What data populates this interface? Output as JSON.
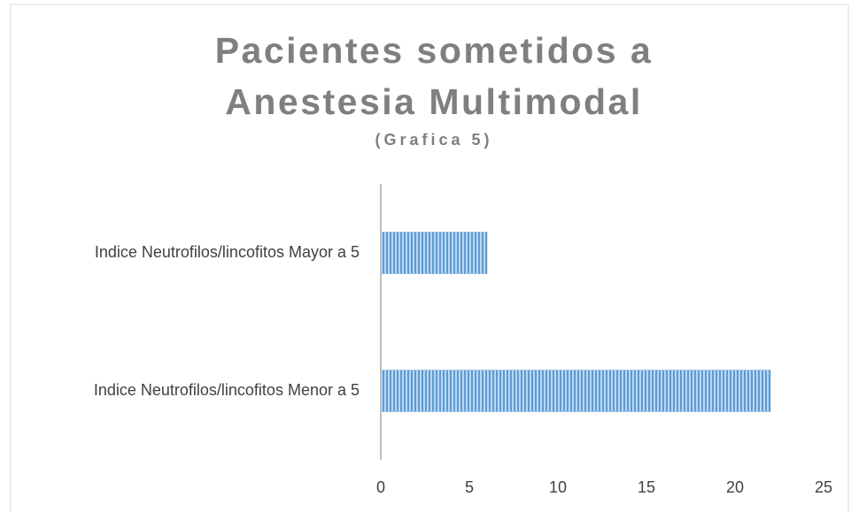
{
  "chart_data": {
    "type": "bar",
    "orientation": "horizontal",
    "title": "Pacientes sometidos a Anestesia Multimodal",
    "subtitle": "(Grafica 5)",
    "categories": [
      "Indice Neutrofilos/lincofitos Mayor a 5",
      "Indice Neutrofilos/lincofitos Menor a 5"
    ],
    "values": [
      6,
      22
    ],
    "color": "#5b9bd5",
    "xlim": [
      0,
      25
    ],
    "xticks": [
      0,
      5,
      10,
      15,
      20,
      25
    ],
    "grid": false
  }
}
